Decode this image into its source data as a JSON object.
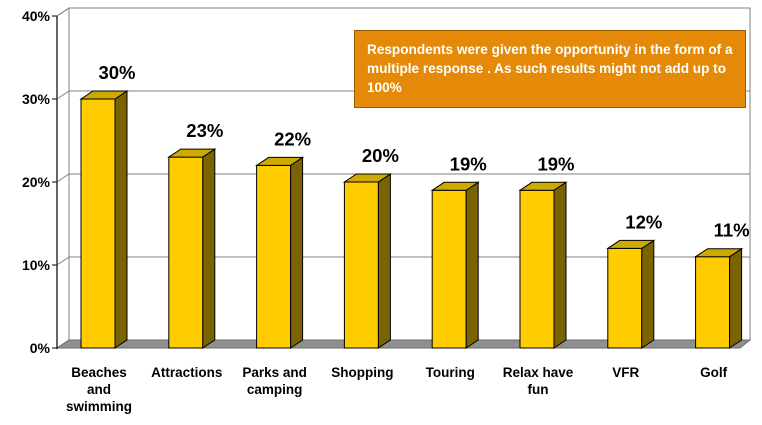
{
  "chart_data": {
    "type": "bar",
    "categories": [
      [
        "Beaches",
        "and",
        "swimming"
      ],
      [
        "Attractions"
      ],
      [
        "Parks and",
        "camping"
      ],
      [
        "Shopping"
      ],
      [
        "Touring"
      ],
      [
        "Relax have",
        "fun"
      ],
      [
        "VFR"
      ],
      [
        "Golf"
      ]
    ],
    "values": [
      30,
      23,
      22,
      20,
      19,
      19,
      12,
      11
    ],
    "value_labels": [
      "30%",
      "23%",
      "22%",
      "20%",
      "19%",
      "19%",
      "12%",
      "11%"
    ],
    "yticks": [
      "0%",
      "10%",
      "20%",
      "30%",
      "40%"
    ],
    "ylim": [
      0,
      40
    ],
    "grid": true,
    "annotation": "Respondents were given the opportunity in the form of a multiple response . As such results might not add up to 100%",
    "colors": {
      "bar_front": "#ffcc00",
      "bar_top": "#ccaa00",
      "bar_side": "#7a6300",
      "annotation_bg": "#e58a08",
      "floor": "#8f8f8f",
      "wall": "#ffffff"
    }
  }
}
